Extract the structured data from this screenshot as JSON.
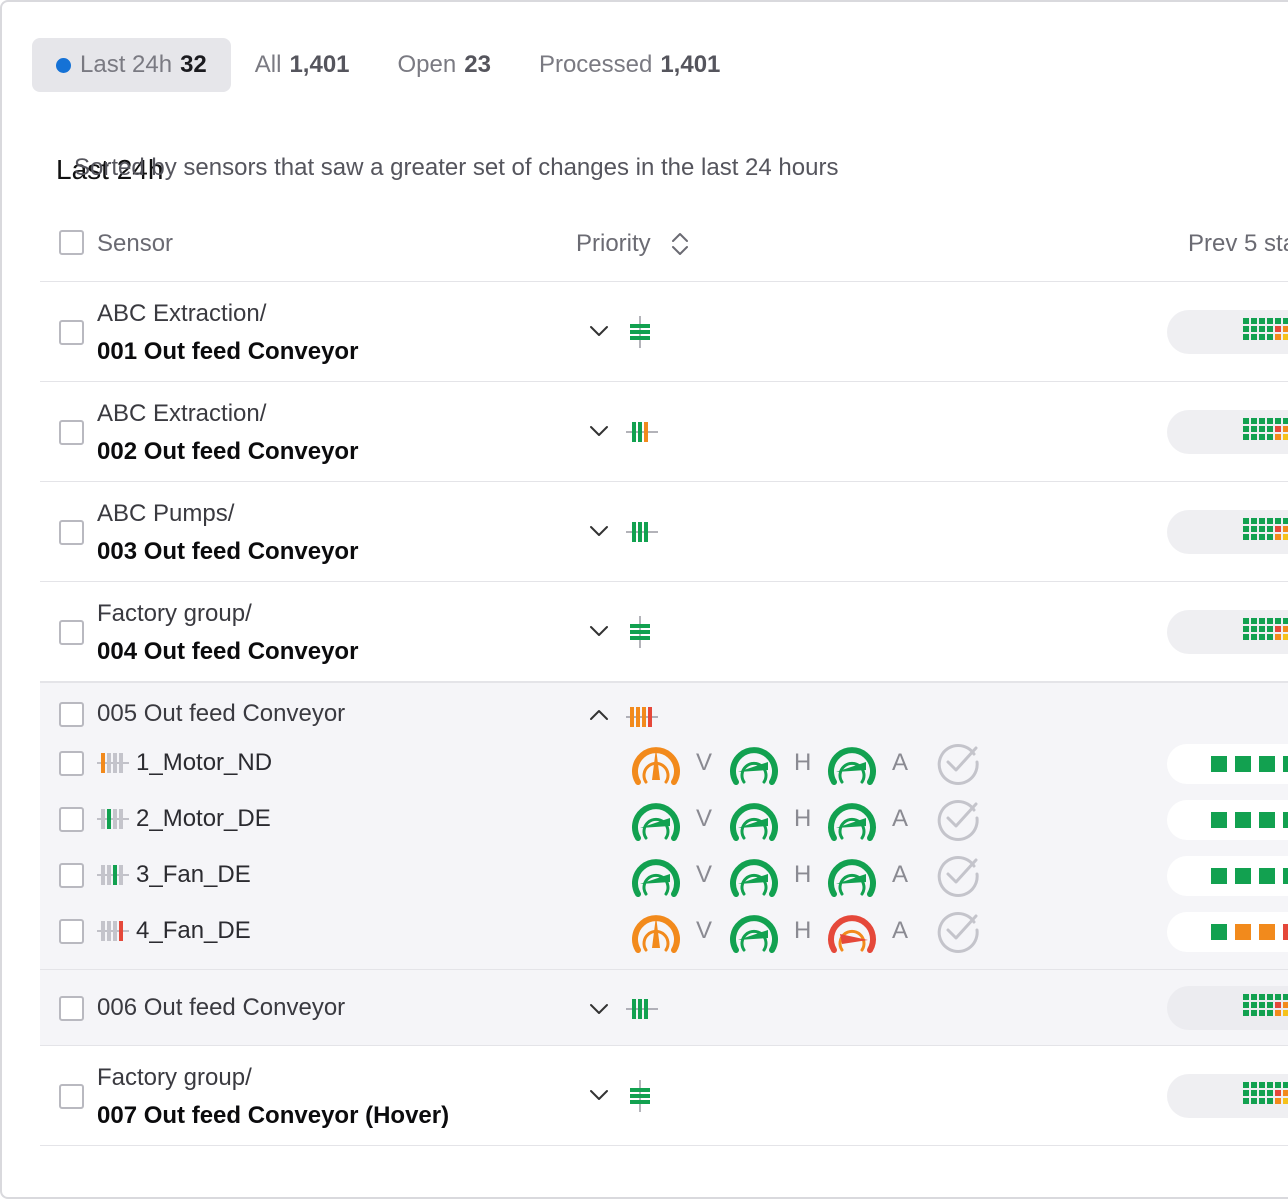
{
  "tabs": [
    {
      "label": "Last 24h",
      "count": "32",
      "active": true
    },
    {
      "label": "All",
      "count": "1,401",
      "active": false
    },
    {
      "label": "Open",
      "count": "23",
      "active": false
    },
    {
      "label": "Processed",
      "count": "1,401",
      "active": false
    }
  ],
  "section": {
    "title": "Last 24h",
    "subtitle": "Sorted by sensors that saw a greater set of changes in the last 24 hours"
  },
  "columns": {
    "sensor": "Sensor",
    "priority": "Priority",
    "prev": "Prev 5 sta"
  },
  "rows": [
    {
      "group": "ABC Extraction/",
      "name": "001 Out feed Conveyor",
      "priority_icon": "priority-horizontal-bars-green"
    },
    {
      "group": "ABC Extraction/",
      "name": "002 Out feed Conveyor",
      "priority_icon": "priority-vertical-bars-green-orange"
    },
    {
      "group": "ABC Pumps/",
      "name": "003 Out feed Conveyor",
      "priority_icon": "priority-vertical-bars-green"
    },
    {
      "group": "Factory group/",
      "name": "004 Out feed Conveyor",
      "priority_icon": "priority-horizontal-bars-green"
    }
  ],
  "expanded_group": {
    "name": "005 Out feed Conveyor",
    "priority_icon": "priority-vertical-bars-orange-red",
    "axis_labels": [
      "V",
      "H",
      "A"
    ],
    "sensors": [
      {
        "name": "1_Motor_ND",
        "gauges": [
          "warning",
          "ok",
          "ok"
        ],
        "history": [
          "green",
          "green",
          "green",
          "green"
        ]
      },
      {
        "name": "2_Motor_DE",
        "gauges": [
          "ok",
          "ok",
          "ok"
        ],
        "history": [
          "green",
          "green",
          "green",
          "green"
        ]
      },
      {
        "name": "3_Fan_DE",
        "gauges": [
          "ok",
          "ok",
          "ok"
        ],
        "history": [
          "green",
          "green",
          "green",
          "green"
        ]
      },
      {
        "name": "4_Fan_DE",
        "gauges": [
          "warning",
          "ok",
          "critical"
        ],
        "history": [
          "green",
          "orange",
          "orange",
          "red"
        ]
      }
    ]
  },
  "row006": {
    "name": "006 Out feed Conveyor",
    "priority_icon": "priority-vertical-bars-green"
  },
  "row007": {
    "group": "Factory group/",
    "name": "007 Out feed Conveyor (Hover)",
    "priority_icon": "priority-horizontal-bars-green"
  },
  "colors": {
    "accent": "#1572d6",
    "green": "#12a150",
    "orange": "#f28a1c",
    "red": "#e5483a",
    "yellow": "#f5c21b"
  }
}
